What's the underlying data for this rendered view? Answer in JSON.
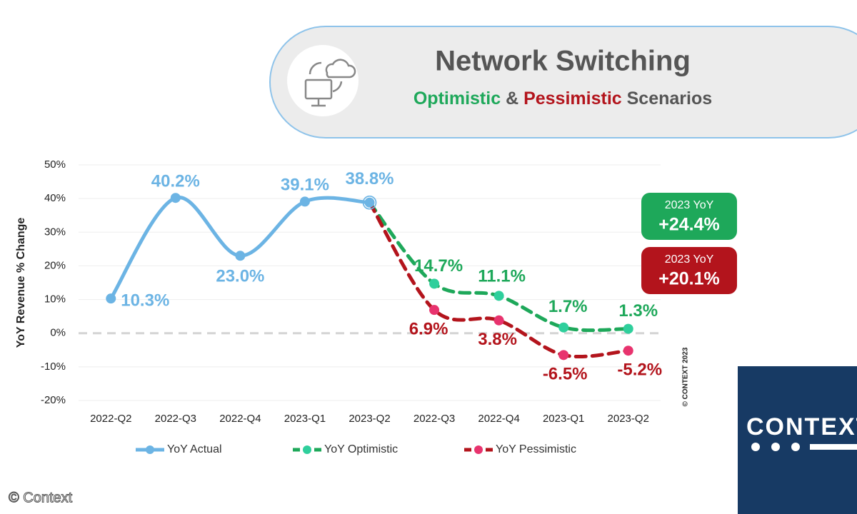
{
  "chart_data": {
    "type": "line",
    "title": "Network Switching",
    "subtitle": {
      "optimistic": "Optimistic",
      "and": "&",
      "pessimistic": "Pessimistic",
      "rest": "Scenarios"
    },
    "ylabel": "YoY Revenue % Change",
    "categories": [
      "2022-Q2",
      "2022-Q3",
      "2022-Q4",
      "2023-Q1",
      "2023-Q2",
      "2022-Q3",
      "2022-Q4",
      "2023-Q1",
      "2023-Q2"
    ],
    "ylim": [
      -20,
      50
    ],
    "yticks": [
      {
        "value": 50,
        "label": "50%"
      },
      {
        "value": 40,
        "label": "40%"
      },
      {
        "value": 30,
        "label": "30%"
      },
      {
        "value": 20,
        "label": "20%"
      },
      {
        "value": 10,
        "label": "10%"
      },
      {
        "value": 0,
        "label": "0%"
      },
      {
        "value": -10,
        "label": "-10%"
      },
      {
        "value": -20,
        "label": "-20%"
      }
    ],
    "grid": true,
    "series": [
      {
        "name": "YoY Actual",
        "color": "#6cb4e4",
        "marker_color": "#6cb4e4",
        "dashed": false,
        "values": [
          10.3,
          40.2,
          23.0,
          39.1,
          38.8,
          null,
          null,
          null,
          null
        ],
        "value_labels": [
          "10.3%",
          "40.2%",
          "23.0%",
          "39.1%",
          "38.8%",
          null,
          null,
          null,
          null
        ]
      },
      {
        "name": "YoY Optimistic",
        "color": "#1ea85a",
        "marker_color": "#2fcf9c",
        "dashed": true,
        "values": [
          null,
          null,
          null,
          null,
          38.8,
          14.7,
          11.1,
          1.7,
          1.3
        ],
        "value_labels": [
          null,
          null,
          null,
          null,
          null,
          "14.7%",
          "11.1%",
          "1.7%",
          "1.3%"
        ]
      },
      {
        "name": "YoY Pessimistic",
        "color": "#b3141c",
        "marker_color": "#e8336e",
        "dashed": true,
        "values": [
          null,
          null,
          null,
          null,
          38.8,
          6.9,
          3.8,
          -6.5,
          -5.2
        ],
        "value_labels": [
          null,
          null,
          null,
          null,
          null,
          "6.9%",
          "3.8%",
          "-6.5%",
          "-5.2%"
        ]
      }
    ],
    "badges": [
      {
        "heading": "2023 YoY",
        "value": "+24.4%",
        "color": "#1ea85a"
      },
      {
        "heading": "2023 YoY",
        "value": "+20.1%",
        "color": "#b3141c"
      }
    ],
    "copyright": "© CONTEXT 2023",
    "watermark": "© Context",
    "logo": "CONTEXT"
  }
}
